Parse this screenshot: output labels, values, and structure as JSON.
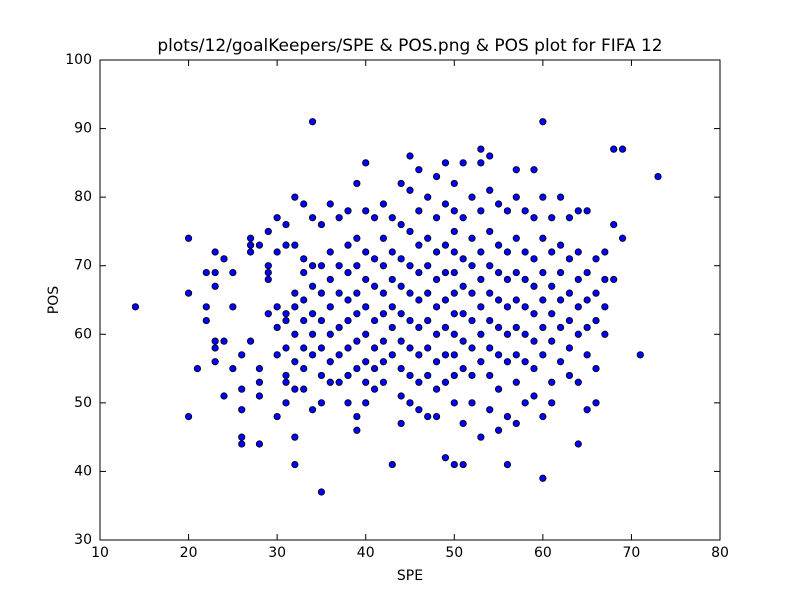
{
  "chart_data": {
    "type": "scatter",
    "title": "plots/12/goalKeepers/SPE & POS.png & POS plot for FIFA 12",
    "xlabel": "SPE",
    "ylabel": "POS",
    "color": "#0000ff",
    "xlim": [
      10,
      80
    ],
    "xticks": [
      10,
      20,
      30,
      40,
      50,
      60,
      70,
      80
    ],
    "ylim": [
      30,
      100
    ],
    "yticks": [
      30,
      40,
      50,
      60,
      70,
      80,
      90,
      100
    ],
    "x": [
      14,
      20,
      20,
      20,
      21,
      22,
      22,
      22,
      23,
      23,
      23,
      23,
      23,
      23,
      24,
      24,
      24,
      25,
      25,
      25,
      26,
      26,
      26,
      26,
      26,
      27,
      27,
      27,
      27,
      28,
      28,
      28,
      28,
      28,
      29,
      29,
      29,
      29,
      29,
      30,
      30,
      30,
      30,
      30,
      30,
      31,
      31,
      31,
      31,
      31,
      31,
      31,
      31,
      32,
      32,
      32,
      32,
      32,
      32,
      32,
      32,
      32,
      33,
      33,
      33,
      33,
      33,
      33,
      33,
      33,
      34,
      34,
      34,
      34,
      34,
      34,
      34,
      34,
      35,
      35,
      35,
      35,
      35,
      35,
      35,
      35,
      36,
      36,
      36,
      36,
      36,
      36,
      36,
      37,
      37,
      37,
      37,
      37,
      37,
      38,
      38,
      38,
      38,
      38,
      38,
      38,
      38,
      39,
      39,
      39,
      39,
      39,
      39,
      39,
      39,
      39,
      40,
      40,
      40,
      40,
      40,
      40,
      40,
      40,
      40,
      41,
      41,
      41,
      41,
      41,
      41,
      41,
      42,
      42,
      42,
      42,
      42,
      42,
      42,
      42,
      43,
      43,
      43,
      43,
      43,
      43,
      43,
      44,
      44,
      44,
      44,
      44,
      44,
      44,
      44,
      44,
      45,
      45,
      45,
      45,
      45,
      45,
      45,
      45,
      45,
      46,
      46,
      46,
      46,
      46,
      46,
      46,
      46,
      46,
      47,
      47,
      47,
      47,
      47,
      47,
      47,
      47,
      48,
      48,
      48,
      48,
      48,
      48,
      48,
      48,
      48,
      49,
      49,
      49,
      49,
      49,
      49,
      49,
      49,
      49,
      50,
      50,
      50,
      50,
      50,
      50,
      50,
      50,
      50,
      50,
      50,
      50,
      51,
      51,
      51,
      51,
      51,
      51,
      51,
      51,
      51,
      52,
      52,
      52,
      52,
      52,
      52,
      52,
      52,
      53,
      53,
      53,
      53,
      53,
      53,
      53,
      53,
      53,
      54,
      54,
      54,
      54,
      54,
      54,
      54,
      54,
      54,
      55,
      55,
      55,
      55,
      55,
      55,
      55,
      55,
      56,
      56,
      56,
      56,
      56,
      56,
      56,
      56,
      57,
      57,
      57,
      57,
      57,
      57,
      57,
      57,
      57,
      58,
      58,
      58,
      58,
      58,
      58,
      58,
      59,
      59,
      59,
      59,
      59,
      59,
      59,
      59,
      60,
      60,
      60,
      60,
      60,
      60,
      60,
      60,
      60,
      61,
      61,
      61,
      61,
      61,
      61,
      61,
      62,
      62,
      62,
      62,
      62,
      62,
      63,
      63,
      63,
      63,
      63,
      63,
      64,
      64,
      64,
      64,
      64,
      64,
      64,
      65,
      65,
      65,
      65,
      65,
      65,
      66,
      66,
      66,
      66,
      66,
      67,
      67,
      67,
      67,
      68,
      68,
      68,
      69,
      69,
      71,
      73
    ],
    "values": [
      64,
      74,
      66,
      48,
      55,
      69,
      64,
      62,
      72,
      69,
      67,
      59,
      58,
      56,
      59,
      51,
      71,
      69,
      64,
      55,
      57,
      52,
      49,
      45,
      44,
      74,
      73,
      72,
      59,
      73,
      55,
      53,
      51,
      44,
      75,
      70,
      69,
      68,
      63,
      77,
      72,
      64,
      61,
      57,
      48,
      76,
      73,
      63,
      62,
      58,
      54,
      53,
      50,
      80,
      73,
      66,
      64,
      60,
      56,
      52,
      45,
      41,
      79,
      71,
      69,
      65,
      62,
      58,
      55,
      52,
      91,
      77,
      70,
      67,
      63,
      60,
      57,
      49,
      76,
      70,
      66,
      62,
      58,
      54,
      50,
      37,
      79,
      72,
      68,
      64,
      60,
      56,
      53,
      77,
      70,
      66,
      61,
      57,
      53,
      78,
      73,
      69,
      65,
      62,
      58,
      54,
      50,
      82,
      74,
      70,
      66,
      63,
      59,
      55,
      48,
      46,
      85,
      78,
      72,
      68,
      64,
      60,
      56,
      53,
      50,
      77,
      71,
      67,
      62,
      58,
      55,
      52,
      79,
      74,
      70,
      66,
      63,
      59,
      56,
      53,
      77,
      72,
      68,
      64,
      61,
      57,
      41,
      82,
      76,
      71,
      67,
      63,
      59,
      55,
      51,
      47,
      86,
      81,
      75,
      70,
      66,
      62,
      58,
      54,
      50,
      84,
      78,
      73,
      69,
      65,
      61,
      57,
      53,
      49,
      80,
      74,
      70,
      66,
      62,
      58,
      54,
      48,
      83,
      77,
      72,
      68,
      64,
      60,
      56,
      52,
      48,
      85,
      79,
      73,
      69,
      65,
      61,
      57,
      53,
      42,
      82,
      78,
      75,
      72,
      69,
      66,
      63,
      60,
      57,
      54,
      50,
      41,
      85,
      77,
      71,
      67,
      63,
      59,
      55,
      47,
      41,
      80,
      74,
      70,
      66,
      62,
      58,
      54,
      50,
      87,
      85,
      78,
      72,
      68,
      64,
      60,
      56,
      45,
      86,
      81,
      75,
      70,
      66,
      62,
      58,
      54,
      49,
      79,
      73,
      69,
      65,
      61,
      57,
      52,
      46,
      78,
      72,
      68,
      64,
      60,
      56,
      48,
      41,
      84,
      80,
      74,
      69,
      65,
      61,
      57,
      53,
      47,
      78,
      72,
      68,
      64,
      60,
      56,
      50,
      84,
      77,
      71,
      67,
      63,
      59,
      55,
      51,
      91,
      80,
      74,
      69,
      65,
      61,
      57,
      48,
      39,
      77,
      72,
      67,
      63,
      59,
      53,
      50,
      80,
      73,
      69,
      65,
      61,
      56,
      77,
      71,
      66,
      62,
      58,
      54,
      78,
      72,
      68,
      64,
      60,
      53,
      44,
      78,
      69,
      65,
      61,
      57,
      49,
      71,
      66,
      62,
      55,
      50,
      72,
      68,
      64,
      60,
      87,
      76,
      68,
      87,
      74,
      57,
      83
    ]
  }
}
